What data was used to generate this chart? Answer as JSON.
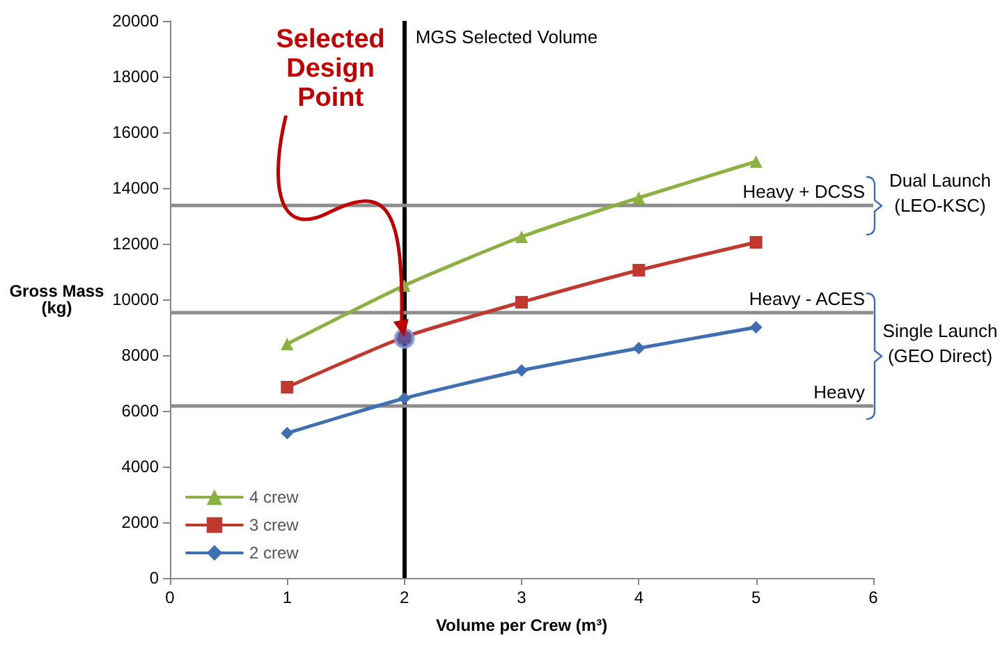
{
  "chart_data": {
    "type": "line",
    "xlabel": "Volume per Crew (m³)",
    "ylabel": "Gross Mass\n(kg)",
    "x": [
      1,
      2,
      3,
      4,
      5
    ],
    "xlim": [
      0,
      6
    ],
    "xticks": [
      0,
      1,
      2,
      3,
      4,
      5,
      6
    ],
    "ylim": [
      0,
      20000
    ],
    "yticks": [
      0,
      2000,
      4000,
      6000,
      8000,
      10000,
      12000,
      14000,
      16000,
      18000,
      20000
    ],
    "grid": false,
    "legend": "bottom left",
    "series": [
      {
        "name": "4 crew",
        "color": "#8cb043",
        "marker": "triangle",
        "values": [
          8400,
          10500,
          12250,
          13650,
          14950
        ]
      },
      {
        "name": "3 crew",
        "color": "#c0392f",
        "marker": "square",
        "values": [
          6850,
          8650,
          9900,
          11050,
          12050
        ]
      },
      {
        "name": "2 crew",
        "color": "#3f6fb0",
        "marker": "diamond",
        "values": [
          5200,
          6450,
          7450,
          8250,
          9000
        ]
      },
      {
        "type": "scatter",
        "color": "#4a5aa8",
        "marker": "circle",
        "x": [
          2
        ],
        "values": [
          8600
        ]
      }
    ],
    "ref_lines": [
      {
        "axis": "x",
        "value": 2,
        "label": "MGS Selected Volume",
        "color": "#000000"
      },
      {
        "axis": "y",
        "value": 13400,
        "label": "Heavy + DCSS",
        "color": "#8c8c8c"
      },
      {
        "axis": "y",
        "value": 9550,
        "label": "Heavy - ACES",
        "color": "#8c8c8c"
      },
      {
        "axis": "y",
        "value": 6200,
        "label": "Heavy",
        "color": "#8c8c8c"
      }
    ],
    "annotations": [
      {
        "text": "Selected Design Point",
        "x": 2,
        "y": 8600
      },
      "Dual Launch (LEO-KSC)",
      "Single Launch (GEO Direct)"
    ]
  }
}
